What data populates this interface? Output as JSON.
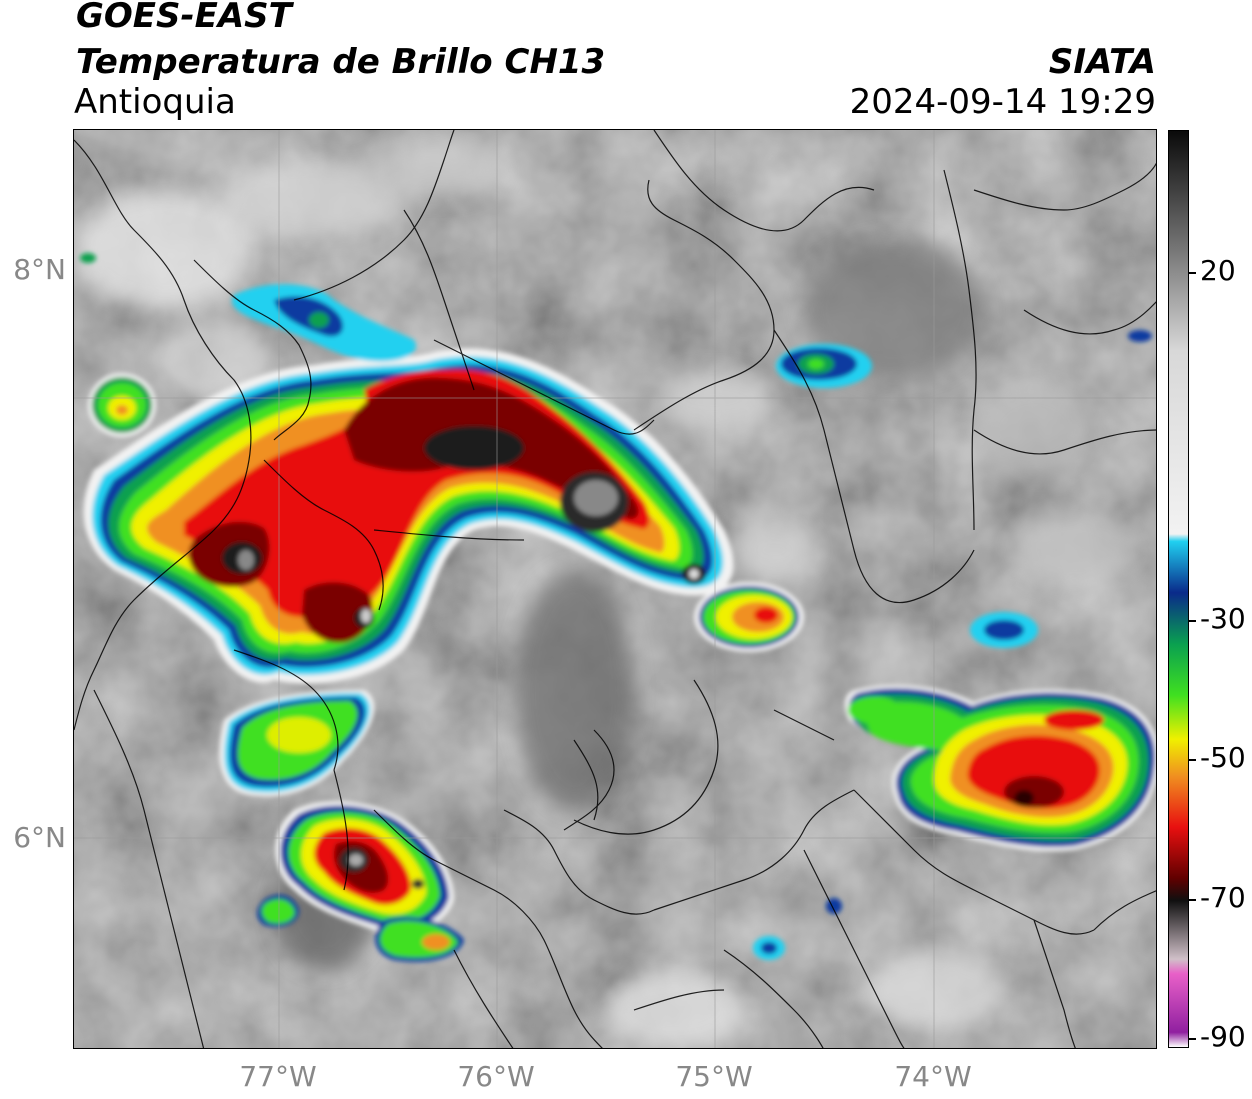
{
  "header": {
    "satellite": "GOES-EAST",
    "product": "Temperatura de Brillo CH13",
    "region": "Antioquia",
    "agency": "SIATA",
    "datetime": "2024-09-14 19:29"
  },
  "axes": {
    "lat_labels": [
      "8°N",
      "6°N"
    ],
    "lon_labels": [
      "77°W",
      "76°W",
      "75°W",
      "74°W"
    ]
  },
  "colorbar": {
    "labels": [
      "20",
      "-30",
      "-50",
      "-70",
      "-90"
    ],
    "stops": [
      {
        "value": 35,
        "color": "#0a0a0a"
      },
      {
        "value": 20,
        "color": "#6e6e6e"
      },
      {
        "value": 5,
        "color": "#d8d8d8"
      },
      {
        "value": -20,
        "color": "#f2f2f2"
      },
      {
        "value": -21,
        "color": "#20d0f0"
      },
      {
        "value": -28,
        "color": "#0a2a8a"
      },
      {
        "value": -35,
        "color": "#0aa050"
      },
      {
        "value": -42,
        "color": "#40e020"
      },
      {
        "value": -48,
        "color": "#f0f000"
      },
      {
        "value": -53,
        "color": "#f09020"
      },
      {
        "value": -60,
        "color": "#e81010"
      },
      {
        "value": -67,
        "color": "#600000"
      },
      {
        "value": -70,
        "color": "#101010"
      },
      {
        "value": -78,
        "color": "#d0c0c8"
      },
      {
        "value": -80,
        "color": "#e860c8"
      },
      {
        "value": -88,
        "color": "#9020a0"
      },
      {
        "value": -90,
        "color": "#ffffff"
      }
    ]
  }
}
